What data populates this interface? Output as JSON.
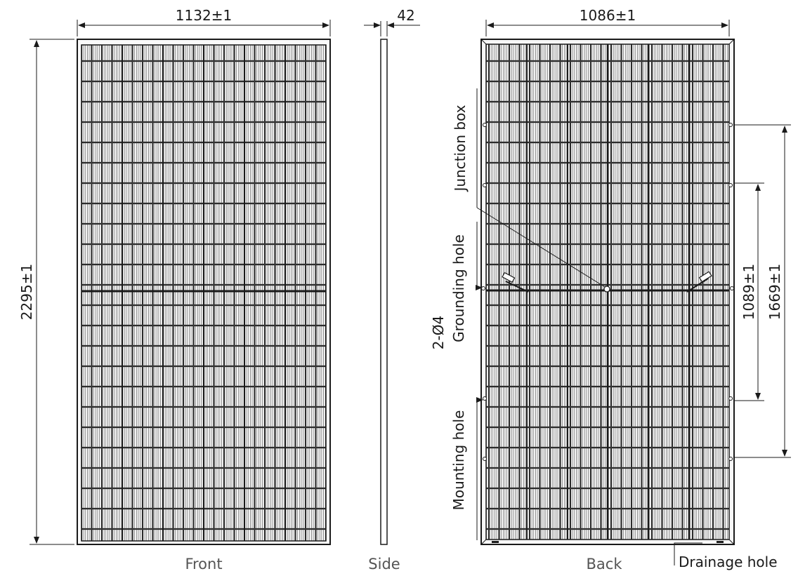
{
  "views": {
    "front": "Front",
    "side": "Side",
    "back": "Back"
  },
  "dimensions": {
    "front_width": "1132±1",
    "side_thickness": "42",
    "back_width": "1086±1",
    "height": "2295±1",
    "mount_spacing_inner": "1089±1",
    "mount_spacing_outer": "1669±1"
  },
  "annotations": {
    "junction_box": "Junction box",
    "grounding_hole_qty": "2-Ø4",
    "grounding_hole": "Grounding hole",
    "mounting_hole": "Mounting hole",
    "drainage_hole": "Drainage  hole"
  },
  "colors": {
    "line": "#1a1a1a",
    "frame": "#333333",
    "cell": "#ffffff",
    "finger": "#555555",
    "label_grey": "#555555"
  }
}
